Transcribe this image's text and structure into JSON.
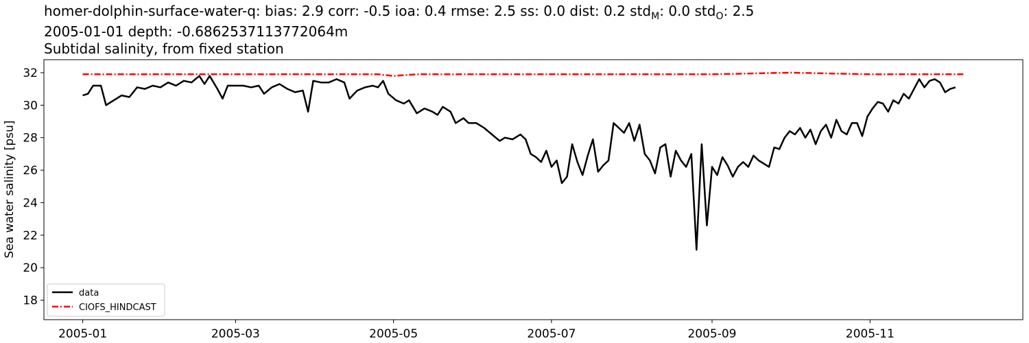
{
  "title_lines": [
    "homer-dolphin-surface-water-q: bias: 2.9  corr: -0.5  ioa: 0.4  rmse: 2.5  ss: 0.0  dist: 0.2  std",
    "2005-01-01 depth: -0.6862537113772064m",
    "Subtidal salinity, from fixed station"
  ],
  "title_std_parts": {
    "std_m_sub": "M",
    "std_m_value": ": 0.0  std",
    "std_o_sub": "O",
    "std_o_value": ": 2.5"
  },
  "chart_data": {
    "type": "line",
    "title": "Subtidal salinity, from fixed station",
    "xlabel": "",
    "ylabel": "Sea water salinity [psu]",
    "xlim": [
      "2004-12-17",
      "2005-12-30"
    ],
    "ylim": [
      16.8,
      32.8
    ],
    "x_ticks": [
      "2005-01",
      "2005-03",
      "2005-05",
      "2005-07",
      "2005-09",
      "2005-11"
    ],
    "y_ticks": [
      18,
      20,
      22,
      24,
      26,
      28,
      30,
      32
    ],
    "grid": false,
    "legend_position": "lower-left",
    "colors": {
      "data": "#000000",
      "CIOFS_HINDCAST": "#ff0000"
    },
    "series": [
      {
        "name": "data",
        "style": "solid",
        "points": [
          [
            "2005-01-01",
            30.6
          ],
          [
            "2005-01-03",
            30.7
          ],
          [
            "2005-01-05",
            31.2
          ],
          [
            "2005-01-08",
            31.2
          ],
          [
            "2005-01-10",
            30.0
          ],
          [
            "2005-01-13",
            30.3
          ],
          [
            "2005-01-16",
            30.6
          ],
          [
            "2005-01-19",
            30.5
          ],
          [
            "2005-01-22",
            31.1
          ],
          [
            "2005-01-25",
            31.0
          ],
          [
            "2005-01-28",
            31.2
          ],
          [
            "2005-01-31",
            31.1
          ],
          [
            "2005-02-03",
            31.4
          ],
          [
            "2005-02-06",
            31.2
          ],
          [
            "2005-02-09",
            31.5
          ],
          [
            "2005-02-12",
            31.4
          ],
          [
            "2005-02-15",
            31.8
          ],
          [
            "2005-02-17",
            31.3
          ],
          [
            "2005-02-19",
            31.8
          ],
          [
            "2005-02-22",
            31.0
          ],
          [
            "2005-02-24",
            30.4
          ],
          [
            "2005-02-26",
            31.2
          ],
          [
            "2005-03-01",
            31.2
          ],
          [
            "2005-03-04",
            31.2
          ],
          [
            "2005-03-07",
            31.1
          ],
          [
            "2005-03-10",
            31.2
          ],
          [
            "2005-03-12",
            30.7
          ],
          [
            "2005-03-15",
            31.1
          ],
          [
            "2005-03-18",
            31.3
          ],
          [
            "2005-03-21",
            31.0
          ],
          [
            "2005-03-24",
            30.8
          ],
          [
            "2005-03-27",
            30.9
          ],
          [
            "2005-03-29",
            29.6
          ],
          [
            "2005-03-31",
            31.5
          ],
          [
            "2005-04-03",
            31.4
          ],
          [
            "2005-04-06",
            31.4
          ],
          [
            "2005-04-09",
            31.6
          ],
          [
            "2005-04-12",
            31.4
          ],
          [
            "2005-04-14",
            30.4
          ],
          [
            "2005-04-17",
            30.9
          ],
          [
            "2005-04-20",
            31.1
          ],
          [
            "2005-04-23",
            31.2
          ],
          [
            "2005-04-25",
            31.1
          ],
          [
            "2005-04-27",
            31.5
          ],
          [
            "2005-04-29",
            30.7
          ],
          [
            "2005-05-02",
            30.3
          ],
          [
            "2005-05-05",
            30.1
          ],
          [
            "2005-05-07",
            30.3
          ],
          [
            "2005-05-10",
            29.5
          ],
          [
            "2005-05-13",
            29.8
          ],
          [
            "2005-05-16",
            29.6
          ],
          [
            "2005-05-18",
            29.4
          ],
          [
            "2005-05-20",
            29.9
          ],
          [
            "2005-05-23",
            29.6
          ],
          [
            "2005-05-25",
            28.9
          ],
          [
            "2005-05-28",
            29.2
          ],
          [
            "2005-05-30",
            28.9
          ],
          [
            "2005-06-02",
            28.9
          ],
          [
            "2005-06-05",
            28.6
          ],
          [
            "2005-06-08",
            28.2
          ],
          [
            "2005-06-11",
            27.8
          ],
          [
            "2005-06-13",
            28.0
          ],
          [
            "2005-06-16",
            27.9
          ],
          [
            "2005-06-19",
            28.2
          ],
          [
            "2005-06-21",
            27.9
          ],
          [
            "2005-06-23",
            27.0
          ],
          [
            "2005-06-25",
            26.8
          ],
          [
            "2005-06-27",
            26.5
          ],
          [
            "2005-06-29",
            27.2
          ],
          [
            "2005-07-01",
            26.2
          ],
          [
            "2005-07-03",
            26.6
          ],
          [
            "2005-07-05",
            25.2
          ],
          [
            "2005-07-07",
            25.6
          ],
          [
            "2005-07-09",
            27.6
          ],
          [
            "2005-07-11",
            26.5
          ],
          [
            "2005-07-13",
            25.7
          ],
          [
            "2005-07-15",
            26.9
          ],
          [
            "2005-07-17",
            27.9
          ],
          [
            "2005-07-19",
            25.9
          ],
          [
            "2005-07-21",
            26.3
          ],
          [
            "2005-07-23",
            26.6
          ],
          [
            "2005-07-25",
            28.9
          ],
          [
            "2005-07-27",
            28.6
          ],
          [
            "2005-07-29",
            28.3
          ],
          [
            "2005-07-31",
            28.9
          ],
          [
            "2005-08-02",
            27.8
          ],
          [
            "2005-08-04",
            28.8
          ],
          [
            "2005-08-06",
            27.0
          ],
          [
            "2005-08-08",
            26.6
          ],
          [
            "2005-08-10",
            25.8
          ],
          [
            "2005-08-12",
            27.4
          ],
          [
            "2005-08-14",
            27.6
          ],
          [
            "2005-08-16",
            25.6
          ],
          [
            "2005-08-18",
            27.2
          ],
          [
            "2005-08-20",
            26.6
          ],
          [
            "2005-08-22",
            26.2
          ],
          [
            "2005-08-24",
            27.0
          ],
          [
            "2005-08-26",
            21.1
          ],
          [
            "2005-08-28",
            27.6
          ],
          [
            "2005-08-30",
            22.6
          ],
          [
            "2005-09-01",
            26.2
          ],
          [
            "2005-09-03",
            25.7
          ],
          [
            "2005-09-05",
            26.8
          ],
          [
            "2005-09-07",
            26.3
          ],
          [
            "2005-09-09",
            25.6
          ],
          [
            "2005-09-11",
            26.2
          ],
          [
            "2005-09-13",
            26.5
          ],
          [
            "2005-09-15",
            26.2
          ],
          [
            "2005-09-17",
            26.9
          ],
          [
            "2005-09-19",
            26.6
          ],
          [
            "2005-09-21",
            26.4
          ],
          [
            "2005-09-23",
            26.2
          ],
          [
            "2005-09-25",
            27.4
          ],
          [
            "2005-09-27",
            27.3
          ],
          [
            "2005-09-29",
            28.0
          ],
          [
            "2005-10-01",
            28.4
          ],
          [
            "2005-10-03",
            28.2
          ],
          [
            "2005-10-05",
            28.6
          ],
          [
            "2005-10-07",
            28.0
          ],
          [
            "2005-10-09",
            28.5
          ],
          [
            "2005-10-11",
            27.6
          ],
          [
            "2005-10-13",
            28.4
          ],
          [
            "2005-10-15",
            28.8
          ],
          [
            "2005-10-17",
            28.0
          ],
          [
            "2005-10-19",
            29.1
          ],
          [
            "2005-10-21",
            28.4
          ],
          [
            "2005-10-23",
            28.2
          ],
          [
            "2005-10-25",
            28.9
          ],
          [
            "2005-10-27",
            28.9
          ],
          [
            "2005-10-29",
            28.1
          ],
          [
            "2005-10-31",
            29.3
          ],
          [
            "2005-11-02",
            29.8
          ],
          [
            "2005-11-04",
            30.2
          ],
          [
            "2005-11-06",
            30.1
          ],
          [
            "2005-11-08",
            29.6
          ],
          [
            "2005-11-10",
            30.3
          ],
          [
            "2005-11-12",
            30.1
          ],
          [
            "2005-11-14",
            30.7
          ],
          [
            "2005-11-16",
            30.4
          ],
          [
            "2005-11-18",
            31.0
          ],
          [
            "2005-11-20",
            31.6
          ],
          [
            "2005-11-22",
            31.1
          ],
          [
            "2005-11-24",
            31.5
          ],
          [
            "2005-11-26",
            31.6
          ],
          [
            "2005-11-28",
            31.4
          ],
          [
            "2005-11-30",
            30.8
          ],
          [
            "2005-12-02",
            31.0
          ],
          [
            "2005-12-04",
            31.1
          ]
        ]
      },
      {
        "name": "CIOFS_HINDCAST",
        "style": "dashdot",
        "points": [
          [
            "2005-01-01",
            31.9
          ],
          [
            "2005-02-01",
            31.9
          ],
          [
            "2005-03-01",
            31.9
          ],
          [
            "2005-04-01",
            31.9
          ],
          [
            "2005-04-25",
            31.9
          ],
          [
            "2005-05-01",
            31.8
          ],
          [
            "2005-05-10",
            31.9
          ],
          [
            "2005-06-01",
            31.9
          ],
          [
            "2005-07-01",
            31.9
          ],
          [
            "2005-08-01",
            31.9
          ],
          [
            "2005-09-01",
            31.9
          ],
          [
            "2005-10-01",
            32.0
          ],
          [
            "2005-11-01",
            31.9
          ],
          [
            "2005-12-07",
            31.9
          ]
        ]
      }
    ]
  }
}
